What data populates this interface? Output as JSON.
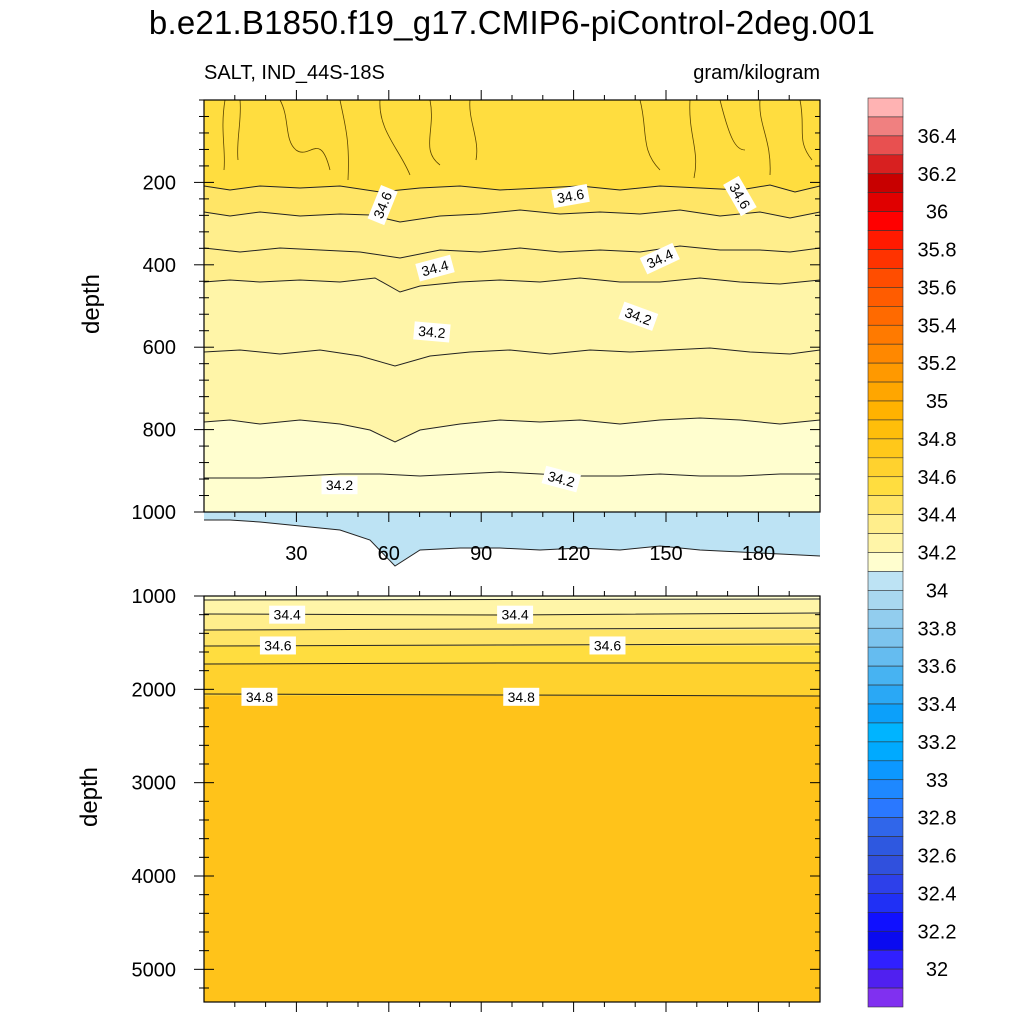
{
  "title": "b.e21.B1850.f19_g17.CMIP6-piControl-2deg.001",
  "subtitle_left": "SALT, IND_44S-18S",
  "subtitle_right": "gram/kilogram",
  "colors": {
    "fresh_blue": "#bde3f4",
    "lv_34_2": "#fffecf",
    "lv_34_3": "#fff5a8",
    "lv_34_4": "#ffee8c",
    "lv_34_5": "#ffe566",
    "lv_34_6": "#ffdd3f",
    "lv_34_7": "#ffd22e",
    "lv_34_8": "#ffc31a"
  },
  "chart_data": [
    {
      "type": "contour",
      "panel": "upper",
      "xlabel": "",
      "ylabel": "depth",
      "xlim": [
        0,
        200
      ],
      "ylim": [
        1000,
        0
      ],
      "x_ticks": [
        30,
        60,
        90,
        120,
        150,
        180
      ],
      "y_ticks": [
        200,
        400,
        600,
        800,
        1000
      ],
      "contour_labels": [
        {
          "text": "34.6",
          "x": 58,
          "y": 255,
          "angle": -68
        },
        {
          "text": "34.6",
          "x": 119,
          "y": 233,
          "angle": -10
        },
        {
          "text": "34.6",
          "x": 174,
          "y": 233,
          "angle": 60
        },
        {
          "text": "34.4",
          "x": 75,
          "y": 408,
          "angle": -15
        },
        {
          "text": "34.4",
          "x": 148,
          "y": 385,
          "angle": -25
        },
        {
          "text": "34.2",
          "x": 74,
          "y": 563,
          "angle": 5
        },
        {
          "text": "34.2",
          "x": 141,
          "y": 525,
          "angle": 20
        },
        {
          "text": "34.2",
          "x": 44,
          "y": 935,
          "angle": 0
        },
        {
          "text": "34.2",
          "x": 116,
          "y": 920,
          "angle": 15
        }
      ]
    },
    {
      "type": "contour",
      "panel": "lower",
      "xlabel": "",
      "ylabel": "depth",
      "xlim": [
        0,
        200
      ],
      "ylim": [
        5350,
        1000
      ],
      "y_ticks": [
        1000,
        2000,
        3000,
        4000,
        5000
      ],
      "contour_labels": [
        {
          "text": "34.4",
          "x": 27,
          "y": 1200,
          "angle": 0
        },
        {
          "text": "34.4",
          "x": 101,
          "y": 1200,
          "angle": 0
        },
        {
          "text": "34.6",
          "x": 24,
          "y": 1530,
          "angle": 0
        },
        {
          "text": "34.6",
          "x": 131,
          "y": 1530,
          "angle": 0
        },
        {
          "text": "34.8",
          "x": 18,
          "y": 2080,
          "angle": 0
        },
        {
          "text": "34.8",
          "x": 103,
          "y": 2080,
          "angle": 0
        }
      ]
    }
  ],
  "colorbar": {
    "labels": [
      "36.4",
      "36.2",
      "36",
      "35.8",
      "35.6",
      "35.4",
      "35.2",
      "35",
      "34.8",
      "34.6",
      "34.4",
      "34.2",
      "34",
      "33.8",
      "33.6",
      "33.4",
      "33.2",
      "33",
      "32.8",
      "32.6",
      "32.4",
      "32.2",
      "32"
    ],
    "colors": [
      "#ffb3b3",
      "#f08080",
      "#e85050",
      "#d82020",
      "#c80000",
      "#e00000",
      "#ff0000",
      "#ff1a00",
      "#ff3300",
      "#ff4d00",
      "#ff5c00",
      "#ff6a00",
      "#ff7a00",
      "#ff8800",
      "#ff9900",
      "#ffa600",
      "#ffb200",
      "#ffbe0a",
      "#ffc81a",
      "#ffd22e",
      "#ffdd3f",
      "#ffe566",
      "#ffee8c",
      "#fff5a8",
      "#fffecf",
      "#bde3f4",
      "#a9d8ef",
      "#92cdee",
      "#7cc4ee",
      "#65bcf0",
      "#47b3f2",
      "#2aa8f5",
      "#0ca0fa",
      "#00b4ff",
      "#00aaff",
      "#0c98ff",
      "#1e88ff",
      "#2a78ff",
      "#3066ea",
      "#2e58e0",
      "#3050dd",
      "#2d40ea",
      "#2030f5",
      "#1010ff",
      "#0a0af0",
      "#3020ff",
      "#5020f0",
      "#8030f0"
    ]
  }
}
